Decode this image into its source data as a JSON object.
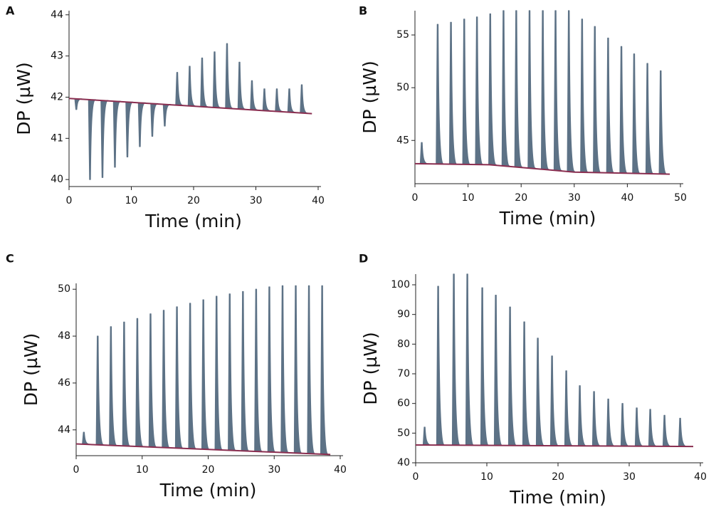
{
  "chart_data": [
    {
      "type": "line",
      "panel": "A",
      "xlabel": "Time (min)",
      "ylabel": "DP (µW)",
      "xlim": [
        0,
        40
      ],
      "xticks": [
        0,
        10,
        20,
        30,
        40
      ],
      "ylim": [
        39.83,
        44.1
      ],
      "yticks": [
        40,
        41,
        42,
        43,
        44
      ],
      "series": [
        {
          "color": "#5d7286",
          "x": [
            1.1,
            3.3,
            5.3,
            7.3,
            9.3,
            11.3,
            13.3,
            15.3,
            17.3,
            19.3,
            21.3,
            23.3,
            25.3,
            27.3,
            29.3,
            31.3,
            33.3,
            35.3,
            37.3
          ],
          "values": [
            41.7,
            40.0,
            40.05,
            40.3,
            40.55,
            40.8,
            41.05,
            41.3,
            42.6,
            42.75,
            42.95,
            43.1,
            43.3,
            42.85,
            42.4,
            42.2,
            42.2,
            42.2,
            42.3
          ]
        },
        {
          "color": "#8a2e50",
          "x": [
            0,
            39
          ],
          "values": [
            41.97,
            41.6
          ]
        }
      ]
    },
    {
      "type": "line",
      "panel": "B",
      "xlabel": "Time (min)",
      "ylabel": "DP (µW)",
      "xlim": [
        0,
        50
      ],
      "xticks": [
        0,
        10,
        20,
        30,
        40,
        50
      ],
      "ylim": [
        40.9,
        57.3
      ],
      "yticks": [
        45,
        50,
        55
      ],
      "series": [
        {
          "color": "#5d7286",
          "x": [
            1.2,
            4.2,
            6.7,
            9.2,
            11.6,
            14.1,
            16.6,
            19.0,
            21.5,
            24.0,
            26.4,
            28.9,
            31.4,
            33.8,
            36.3,
            38.8,
            41.2,
            43.7,
            46.2
          ],
          "values": [
            44.8,
            56.0,
            56.2,
            56.5,
            56.7,
            57.0,
            57.3,
            57.3,
            57.3,
            57.3,
            57.3,
            57.3,
            56.5,
            55.8,
            54.7,
            53.9,
            53.2,
            52.3,
            51.6
          ]
        },
        {
          "color": "#8a2e50",
          "x": [
            0,
            14,
            30,
            48
          ],
          "values": [
            42.8,
            42.7,
            42.0,
            41.8
          ]
        }
      ]
    },
    {
      "type": "line",
      "panel": "C",
      "xlabel": "Time (min)",
      "ylabel": "DP (µW)",
      "xlim": [
        0,
        40
      ],
      "xticks": [
        0,
        10,
        20,
        30,
        40
      ],
      "ylim": [
        42.9,
        50.25
      ],
      "yticks": [
        44,
        46,
        48,
        50
      ],
      "series": [
        {
          "color": "#5d7286",
          "x": [
            1.1,
            3.2,
            5.2,
            7.2,
            9.2,
            11.2,
            13.2,
            15.2,
            17.2,
            19.2,
            21.2,
            23.2,
            25.2,
            27.2,
            29.2,
            31.2,
            33.2,
            35.2,
            37.2
          ],
          "values": [
            43.9,
            48.0,
            48.4,
            48.6,
            48.75,
            48.95,
            49.1,
            49.25,
            49.4,
            49.55,
            49.7,
            49.8,
            49.9,
            50.0,
            50.1,
            50.15,
            50.15,
            50.15,
            50.15
          ]
        },
        {
          "color": "#8a2e50",
          "x": [
            0,
            38.5
          ],
          "values": [
            43.4,
            42.95
          ]
        }
      ]
    },
    {
      "type": "line",
      "panel": "D",
      "xlabel": "Time (min)",
      "ylabel": "DP (µW)",
      "xlim": [
        0,
        40
      ],
      "xticks": [
        0,
        10,
        20,
        30,
        40
      ],
      "ylim": [
        40,
        103.6
      ],
      "yticks": [
        40,
        50,
        60,
        70,
        80,
        90,
        100
      ],
      "series": [
        {
          "color": "#5d7286",
          "x": [
            1.2,
            3.1,
            5.3,
            7.2,
            9.3,
            11.2,
            13.2,
            15.2,
            17.1,
            19.1,
            21.1,
            23.0,
            25.0,
            27.0,
            29.0,
            31.0,
            32.9,
            34.9,
            37.1
          ],
          "values": [
            52,
            99.5,
            103.6,
            103.6,
            99,
            96.5,
            92.5,
            87.5,
            82,
            76,
            71,
            66,
            64,
            61.5,
            60,
            58.5,
            58,
            56,
            55
          ]
        },
        {
          "color": "#8a2e50",
          "x": [
            0,
            39
          ],
          "values": [
            46,
            45.5
          ]
        }
      ]
    }
  ]
}
